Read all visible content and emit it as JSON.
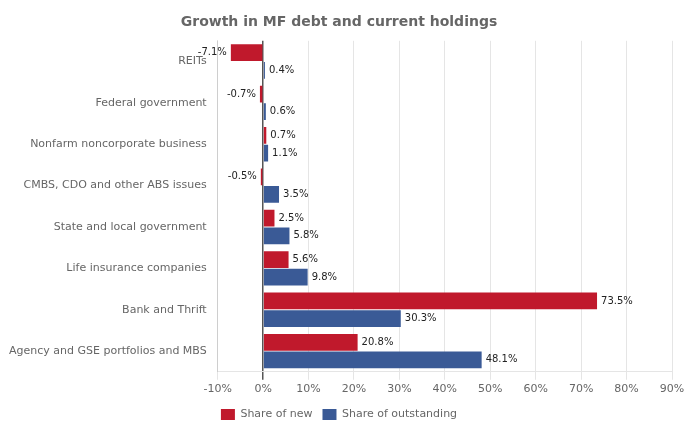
{
  "chart_data": {
    "type": "bar",
    "orientation": "horizontal",
    "title": "Growth in MF debt and current holdings",
    "categories": [
      "Agency and GSE portfolios and MBS",
      "Bank and Thrift",
      "Life insurance companies",
      "State and local government",
      "CMBS, CDO and other ABS issues",
      "Nonfarm noncorporate business",
      "Federal government",
      "REITs"
    ],
    "series": [
      {
        "name": "Share of new",
        "color": "#C0192C",
        "values": [
          20.8,
          73.5,
          5.6,
          2.5,
          -0.5,
          0.7,
          -0.7,
          -7.1
        ],
        "value_labels": [
          "20.8%",
          "73.5%",
          "5.6%",
          "2.5%",
          "-0.5%",
          "0.7%",
          "-0.7%",
          "-7.1%"
        ]
      },
      {
        "name": "Share of outstanding",
        "color": "#3A5A96",
        "values": [
          48.1,
          30.3,
          9.8,
          5.8,
          3.5,
          1.1,
          0.6,
          0.4
        ],
        "value_labels": [
          "48.1%",
          "30.3%",
          "9.8%",
          "5.8%",
          "3.5%",
          "1.1%",
          "0.6%",
          "0.4%"
        ]
      }
    ],
    "xlim": [
      -10,
      90
    ],
    "xticks": [
      {
        "value": -10,
        "label": "-10%"
      },
      {
        "value": 0,
        "label": "0%"
      },
      {
        "value": 10,
        "label": "10%"
      },
      {
        "value": 20,
        "label": "20%"
      },
      {
        "value": 30,
        "label": "30%"
      },
      {
        "value": 40,
        "label": "40%"
      },
      {
        "value": 50,
        "label": "50%"
      },
      {
        "value": 60,
        "label": "60%"
      },
      {
        "value": 70,
        "label": "70%"
      },
      {
        "value": 80,
        "label": "80%"
      },
      {
        "value": 90,
        "label": "90%"
      }
    ],
    "grid": true,
    "legend": "bottom",
    "data_labels": true
  }
}
